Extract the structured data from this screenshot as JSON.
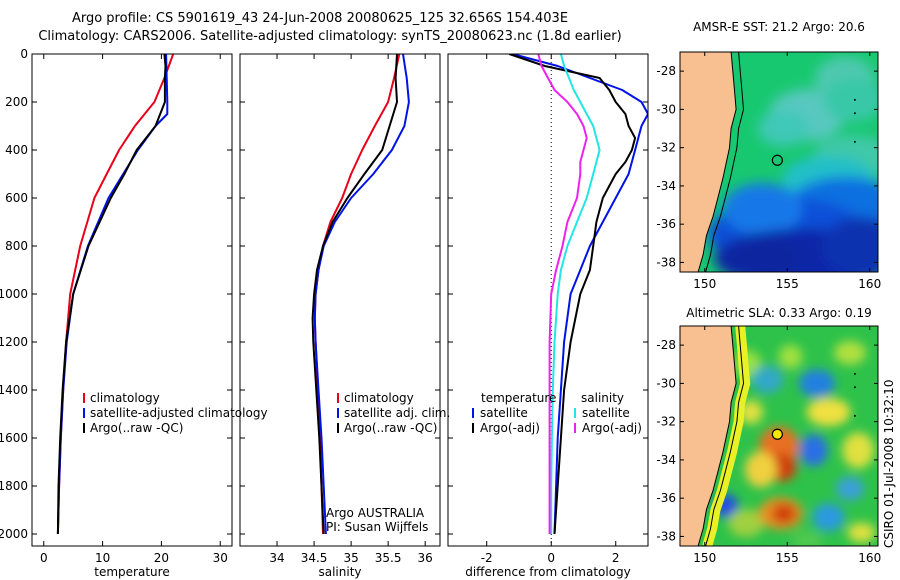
{
  "titles": {
    "line1": "Argo profile: CS 5901619_43 24-Jun-2008 20080625_125 32.656S 154.403E",
    "line2": "Climatology: CARS2006. Satellite-adjusted climatology: synTS_20080623.nc (1.8d earlier)"
  },
  "side_label": "CSIRO 01-Jul-2008 10:32:10",
  "depth_ticks": [
    "0",
    "200",
    "400",
    "600",
    "800",
    "1000",
    "1200",
    "1400",
    "1600",
    "1800",
    "2000"
  ],
  "colors": {
    "red": "#e8001a",
    "blue": "#0012e6",
    "black": "#000000",
    "cyan": "#22e6e6",
    "magenta": "#ee22ee",
    "land": "#f8c090"
  },
  "chart_data": [
    {
      "id": "temperature",
      "type": "line",
      "xlabel": "temperature",
      "xlim": [
        -2,
        32
      ],
      "xticks": [
        "0",
        "10",
        "20",
        "30"
      ],
      "ylim": [
        0,
        2050
      ],
      "y_reversed": true,
      "legend": [
        "climatology",
        "satellite-adjusted climatology",
        "Argo(..raw -QC)"
      ],
      "series": [
        {
          "name": "climatology",
          "color": "red",
          "y": [
            0,
            100,
            200,
            300,
            400,
            500,
            600,
            800,
            1000,
            1200,
            1400,
            1600,
            1800,
            2000
          ],
          "x": [
            22,
            20.5,
            18.8,
            15.5,
            12.8,
            10.7,
            8.6,
            6.2,
            4.5,
            3.8,
            3.3,
            2.9,
            2.6,
            2.4
          ]
        },
        {
          "name": "satellite-adjusted climatology",
          "color": "blue",
          "y": [
            0,
            100,
            200,
            250,
            300,
            400,
            500,
            600,
            800,
            1000,
            1200,
            1400,
            1600,
            1800,
            2000
          ],
          "x": [
            20.8,
            20.9,
            21,
            21,
            19,
            16,
            13.5,
            11,
            7.5,
            5,
            3.9,
            3.3,
            2.9,
            2.6,
            2.4
          ]
        },
        {
          "name": "Argo(..raw -QC)",
          "color": "black",
          "y": [
            0,
            50,
            100,
            200,
            300,
            400,
            500,
            600,
            800,
            1000,
            1200,
            1400,
            1600,
            1800,
            2000
          ],
          "x": [
            20.5,
            20.7,
            20.6,
            20.6,
            19,
            15.8,
            13.7,
            11.4,
            7.6,
            5,
            3.8,
            3.2,
            2.8,
            2.5,
            2.4
          ]
        }
      ]
    },
    {
      "id": "salinity",
      "type": "line",
      "xlabel": "salinity",
      "xlim": [
        33.5,
        36.2
      ],
      "xticks": [
        "34",
        "34.5",
        "35",
        "35.5",
        "36"
      ],
      "ylim": [
        0,
        2050
      ],
      "y_reversed": true,
      "legend": [
        "climatology",
        "satellite adj. clim.",
        "Argo(..raw -QC)"
      ],
      "notes": [
        "Argo AUSTRALIA",
        "PI: Susan Wijffels"
      ],
      "series": [
        {
          "name": "climatology",
          "color": "red",
          "y": [
            0,
            100,
            200,
            300,
            400,
            500,
            600,
            700,
            800,
            900,
            1000,
            1100,
            1200,
            1400,
            1600,
            1800,
            2000
          ],
          "x": [
            35.65,
            35.58,
            35.5,
            35.32,
            35.15,
            35.0,
            34.88,
            34.72,
            34.62,
            34.56,
            34.52,
            34.51,
            34.52,
            34.55,
            34.58,
            34.6,
            34.62
          ]
        },
        {
          "name": "satellite adj. clim.",
          "color": "blue",
          "y": [
            0,
            100,
            200,
            300,
            400,
            500,
            600,
            700,
            800,
            900,
            1000,
            1100,
            1200,
            1400,
            1600,
            1800,
            2000
          ],
          "x": [
            35.7,
            35.75,
            35.78,
            35.72,
            35.55,
            35.3,
            35.0,
            34.78,
            34.63,
            34.56,
            34.52,
            34.51,
            34.52,
            34.56,
            34.6,
            34.63,
            34.66
          ]
        },
        {
          "name": "Argo(..raw -QC)",
          "color": "black",
          "y": [
            0,
            100,
            200,
            300,
            400,
            500,
            600,
            700,
            800,
            900,
            1000,
            1100,
            1200,
            1400,
            1600,
            1800,
            2000
          ],
          "x": [
            35.62,
            35.6,
            35.62,
            35.52,
            35.42,
            35.18,
            34.95,
            34.75,
            34.62,
            34.54,
            34.5,
            34.48,
            34.49,
            34.53,
            34.57,
            34.6,
            34.63
          ]
        }
      ]
    },
    {
      "id": "difference",
      "type": "line",
      "xlabel": "difference from climatology",
      "xlim": [
        -3.2,
        3
      ],
      "xticks": [
        "-2",
        "0",
        "2"
      ],
      "ylim": [
        0,
        2050
      ],
      "y_reversed": true,
      "legend_headers": [
        "temperature",
        "salinity"
      ],
      "legend_left": [
        "satellite",
        "Argo(-adj)"
      ],
      "legend_right": [
        "satellite",
        "Argo(-adj)"
      ],
      "series": [
        {
          "name": "temperature satellite",
          "color": "blue",
          "y": [
            0,
            50,
            100,
            150,
            200,
            250,
            300,
            400,
            500,
            600,
            700,
            800,
            900,
            1000,
            1200,
            1400,
            1600,
            1800,
            2000
          ],
          "x": [
            -1.2,
            0.2,
            1.2,
            2.2,
            2.8,
            3,
            2.8,
            2.6,
            2.4,
            2.0,
            1.6,
            1.2,
            0.9,
            0.6,
            0.4,
            0.3,
            0.2,
            0.15,
            0.1
          ]
        },
        {
          "name": "temperature Argo(-adj)",
          "color": "black",
          "y": [
            0,
            50,
            100,
            150,
            200,
            250,
            300,
            350,
            400,
            450,
            500,
            600,
            700,
            800,
            900,
            1000,
            1200,
            1400,
            1600,
            1800,
            2000
          ],
          "x": [
            -1.3,
            -0.2,
            1.5,
            1.8,
            2.0,
            2.3,
            2.4,
            2.6,
            2.5,
            2.3,
            2.0,
            1.6,
            1.4,
            1.3,
            1.2,
            0.9,
            0.6,
            0.4,
            0.3,
            0.2,
            0.1
          ]
        },
        {
          "name": "salinity satellite",
          "color": "cyan",
          "y": [
            0,
            50,
            100,
            150,
            200,
            250,
            300,
            350,
            400,
            500,
            600,
            700,
            800,
            900,
            1000,
            1200,
            1400,
            1600,
            1800,
            2000
          ],
          "x": [
            0.3,
            0.4,
            0.55,
            0.7,
            0.9,
            1.1,
            1.3,
            1.4,
            1.5,
            1.3,
            1.1,
            0.8,
            0.5,
            0.3,
            0.2,
            0.1,
            0.05,
            0.02,
            0.0,
            0.0
          ]
        },
        {
          "name": "salinity Argo(-adj)",
          "color": "magenta",
          "y": [
            0,
            50,
            100,
            150,
            200,
            250,
            300,
            350,
            400,
            450,
            500,
            600,
            700,
            800,
            900,
            1000,
            1200,
            1400,
            1600,
            1800,
            2000
          ],
          "x": [
            -0.4,
            -0.3,
            -0.1,
            0.1,
            0.5,
            0.8,
            1.0,
            1.1,
            1.0,
            0.9,
            0.9,
            0.8,
            0.5,
            0.35,
            0.15,
            0.0,
            -0.05,
            -0.05,
            -0.05,
            -0.05,
            -0.05
          ]
        }
      ]
    },
    {
      "id": "sst-map",
      "type": "heatmap",
      "title": "AMSR-E SST: 21.2 Argo: 20.6",
      "xlim": [
        148.5,
        160.5
      ],
      "ylim": [
        -38.5,
        -27
      ],
      "xticks": [
        "150",
        "155",
        "160"
      ],
      "yticks": [
        "-28",
        "-30",
        "-32",
        "-34",
        "-36",
        "-38"
      ],
      "float_position": {
        "lon": 154.4,
        "lat": -32.66
      }
    },
    {
      "id": "sla-map",
      "type": "heatmap",
      "title": "Altimetric SLA: 0.33 Argo: 0.19",
      "xlim": [
        148.5,
        160.5
      ],
      "ylim": [
        -38.5,
        -27
      ],
      "xticks": [
        "150",
        "155",
        "160"
      ],
      "yticks": [
        "-28",
        "-30",
        "-32",
        "-34",
        "-36",
        "-38"
      ],
      "float_position": {
        "lon": 154.4,
        "lat": -32.66
      }
    }
  ]
}
